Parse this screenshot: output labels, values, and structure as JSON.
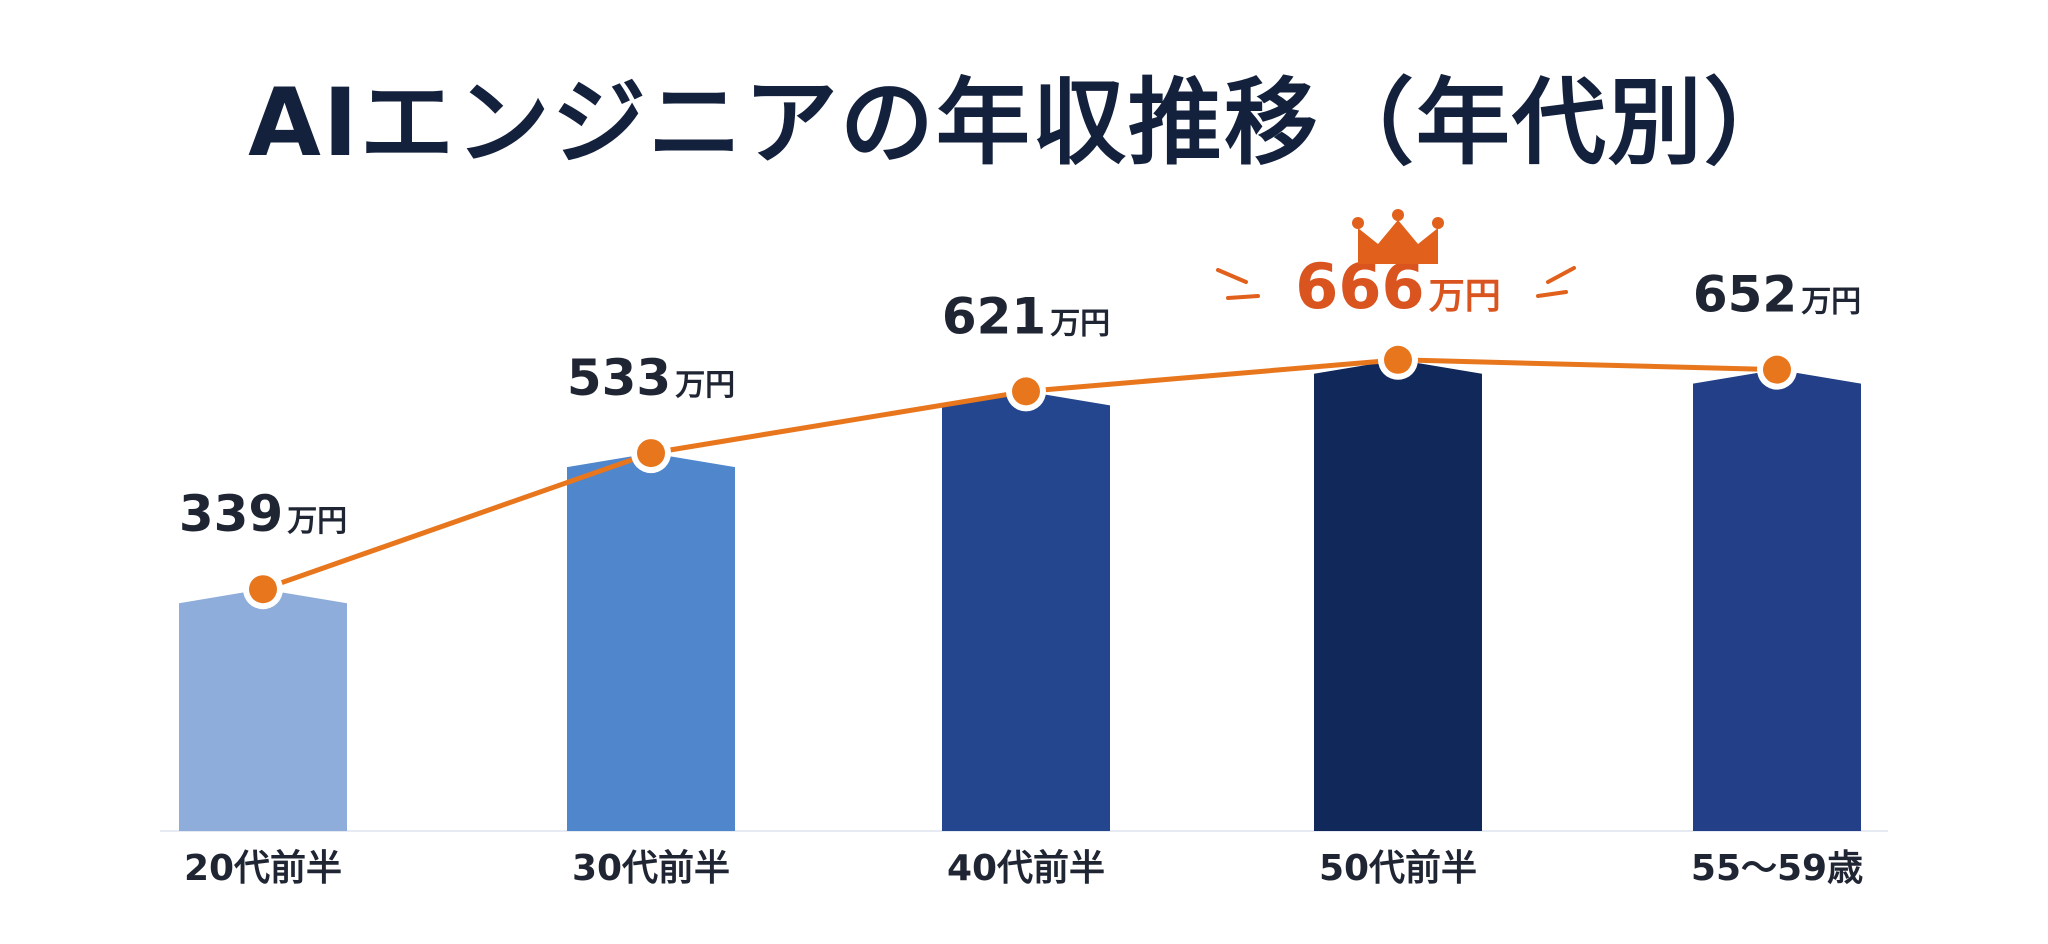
{
  "chart_data": {
    "type": "bar",
    "title": "AIエンジニアの年収推移（年代別）",
    "categories": [
      "20代前半",
      "30代前半",
      "40代前半",
      "50代前半",
      "55〜59歳"
    ],
    "values": [
      339,
      533,
      621,
      666,
      652
    ],
    "unit": "万円",
    "value_labels": [
      "339",
      "533",
      "621",
      "666",
      "652"
    ],
    "ylim": [
      0,
      700
    ],
    "grid": false,
    "legend": "none",
    "overlay_line": true,
    "highlight_index": 3,
    "highlight_icon": "crown-icon",
    "colors": {
      "bars": [
        "#8EADDB",
        "#4F86CC",
        "#23468F",
        "#10285A",
        "#223F88"
      ],
      "line": "#E8761D",
      "title": "#14213D",
      "label": "#1F2533",
      "peak_label": "#D9541E",
      "crown": "#E0601C",
      "axis": "#E6EAF2",
      "background": "#FFFFFF"
    }
  }
}
